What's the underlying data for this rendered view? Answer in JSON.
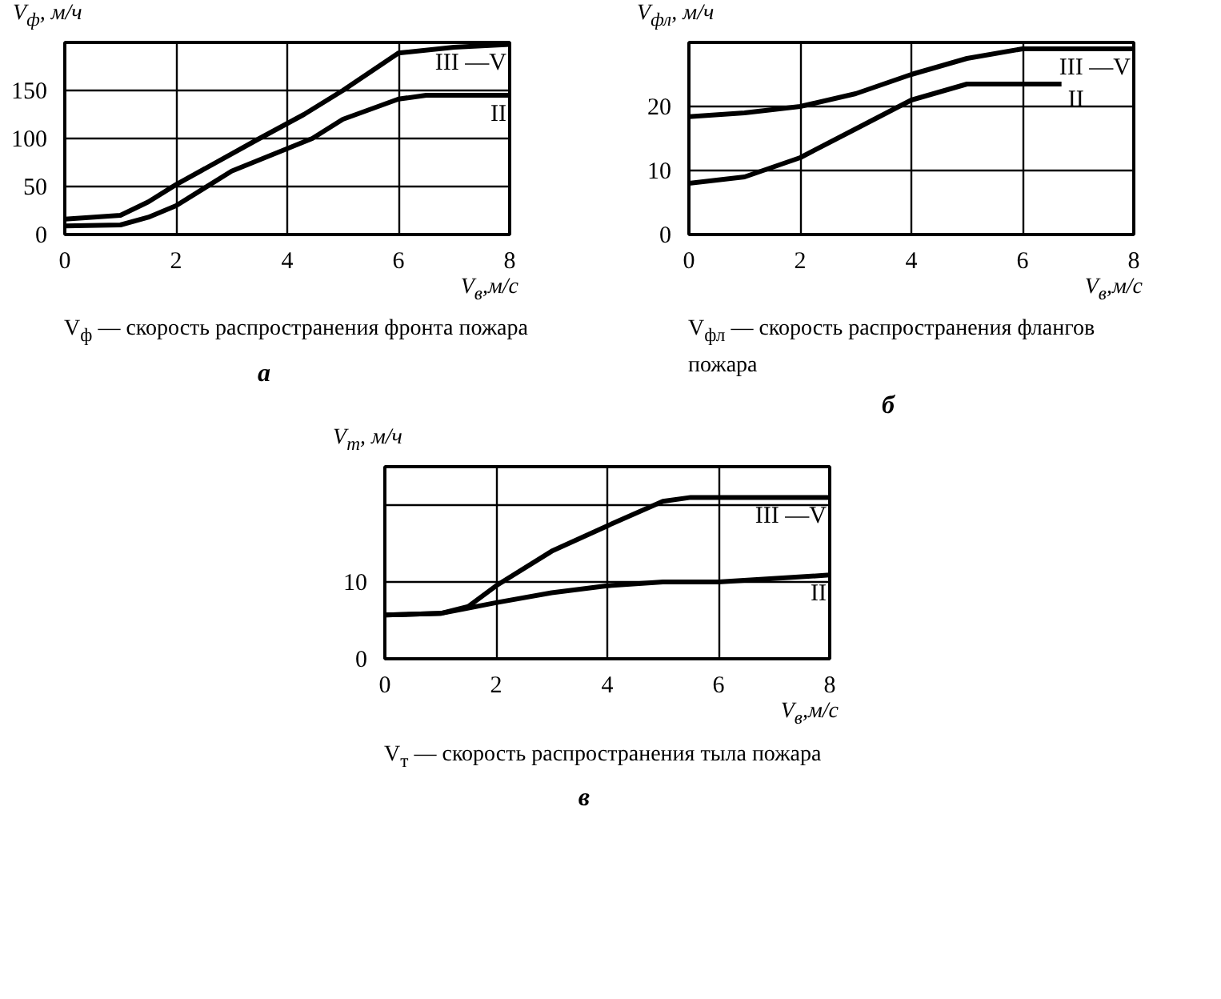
{
  "chart_data": [
    {
      "type": "line",
      "title": "а",
      "xlabel": "V$_{в}$,м/с",
      "ylabel": "V$_{ф}$, м/ч",
      "xlim": [
        0,
        8
      ],
      "ylim": [
        0,
        200
      ],
      "xticks": [
        0,
        2,
        4,
        6,
        8
      ],
      "yticks": [
        0,
        50,
        100,
        150
      ],
      "grid": true,
      "annotations": [
        "V$_{ф}$ — скорость распространения фронта пожара"
      ],
      "series": [
        {
          "name": "III —V",
          "color": "#000000",
          "x": [
            0,
            1,
            1.5,
            2,
            3.5,
            4.3,
            5,
            6,
            7,
            8
          ],
          "values": [
            16,
            20,
            34,
            52,
            100,
            125,
            150,
            189,
            195,
            198
          ]
        },
        {
          "name": "II",
          "color": "#000000",
          "x": [
            0,
            1,
            1.5,
            2,
            3,
            4.45,
            5,
            6,
            6.5,
            7,
            8
          ],
          "values": [
            9,
            10,
            18,
            30,
            66,
            100,
            120,
            141,
            145,
            145,
            145
          ]
        }
      ]
    },
    {
      "type": "line",
      "title": "б",
      "xlabel": "V$_{в}$,м/с",
      "ylabel": "V$_{фл}$, м/ч",
      "xlim": [
        0,
        8
      ],
      "ylim": [
        0,
        30
      ],
      "xticks": [
        0,
        2,
        4,
        6,
        8
      ],
      "yticks": [
        0,
        10,
        20
      ],
      "grid": true,
      "annotations": [
        "V$_{фл}$ — скорость распространения флангов пожара"
      ],
      "series": [
        {
          "name": "III —V",
          "color": "#000000",
          "x": [
            0,
            1,
            2,
            3,
            4,
            5,
            6,
            7,
            8
          ],
          "values": [
            18.4,
            19,
            20,
            22,
            25,
            27.5,
            29,
            29,
            29
          ]
        },
        {
          "name": "II",
          "color": "#000000",
          "x": [
            0,
            1,
            2,
            3,
            4,
            5,
            6,
            6.7
          ],
          "values": [
            8,
            9,
            12,
            16.5,
            21,
            23.5,
            23.5,
            23.5
          ]
        }
      ]
    },
    {
      "type": "line",
      "title": "в",
      "xlabel": "V$_{в}$,м/с",
      "ylabel": "V$_{т}$, м/ч",
      "xlim": [
        0,
        8
      ],
      "ylim": [
        0,
        25
      ],
      "xticks": [
        0,
        2,
        4,
        6,
        8
      ],
      "yticks": [
        0,
        10,
        {
          "value": 20,
          "label": null
        }
      ],
      "grid": true,
      "annotations": [
        "V$_{т}$ — скорость распространения тыла пожара"
      ],
      "series": [
        {
          "name": "III —V",
          "color": "#000000",
          "x": [
            0,
            1,
            1.5,
            2,
            3,
            4,
            5,
            5.5,
            8
          ],
          "values": [
            5.7,
            5.9,
            6.8,
            9.5,
            14,
            17.3,
            20.5,
            21,
            21
          ]
        },
        {
          "name": "II",
          "color": "#000000",
          "x": [
            0,
            1,
            2,
            3,
            4,
            5,
            6,
            8
          ],
          "values": [
            5.7,
            5.9,
            7.3,
            8.6,
            9.5,
            10,
            10,
            10.9
          ]
        }
      ]
    }
  ]
}
